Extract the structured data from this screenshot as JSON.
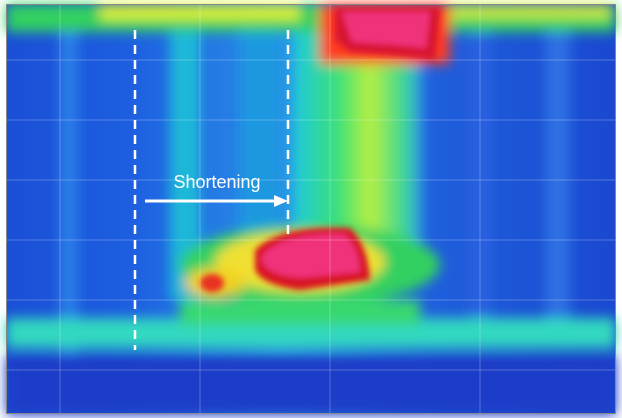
{
  "annotation": {
    "label": "Shortening"
  }
}
